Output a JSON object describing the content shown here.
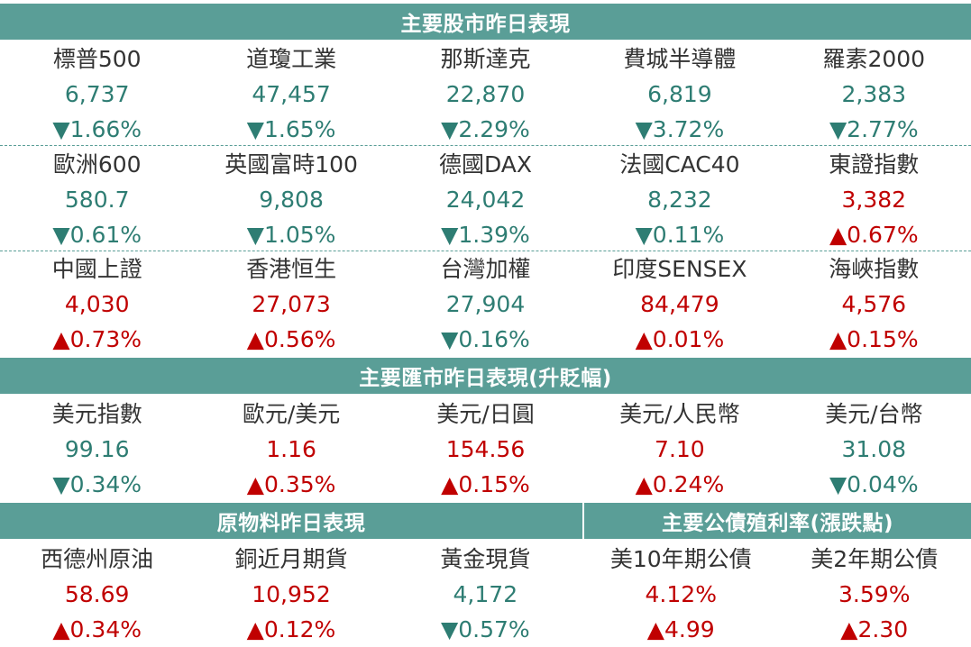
{
  "colors": {
    "banner": "#5a9e97",
    "up": "#c00000",
    "down": "#2e7d73",
    "name": "#333333"
  },
  "stocks": {
    "title": "主要股市昨日表現",
    "rows": [
      [
        {
          "name": "標普500",
          "value": "6,737",
          "change": "▼1.66%",
          "dir": "down"
        },
        {
          "name": "道瓊工業",
          "value": "47,457",
          "change": "▼1.65%",
          "dir": "down"
        },
        {
          "name": "那斯達克",
          "value": "22,870",
          "change": "▼2.29%",
          "dir": "down"
        },
        {
          "name": "費城半導體",
          "value": "6,819",
          "change": "▼3.72%",
          "dir": "down"
        },
        {
          "name": "羅素2000",
          "value": "2,383",
          "change": "▼2.77%",
          "dir": "down"
        }
      ],
      [
        {
          "name": "歐洲600",
          "value": "580.7",
          "change": "▼0.61%",
          "dir": "down"
        },
        {
          "name": "英國富時100",
          "value": "9,808",
          "change": "▼1.05%",
          "dir": "down"
        },
        {
          "name": "德國DAX",
          "value": "24,042",
          "change": "▼1.39%",
          "dir": "down"
        },
        {
          "name": "法國CAC40",
          "value": "8,232",
          "change": "▼0.11%",
          "dir": "down"
        },
        {
          "name": "東證指數",
          "value": "3,382",
          "change": "▲0.67%",
          "dir": "up"
        }
      ],
      [
        {
          "name": "中國上證",
          "value": "4,030",
          "change": "▲0.73%",
          "dir": "up"
        },
        {
          "name": "香港恒生",
          "value": "27,073",
          "change": "▲0.56%",
          "dir": "up"
        },
        {
          "name": "台灣加權",
          "value": "27,904",
          "change": "▼0.16%",
          "dir": "down"
        },
        {
          "name": "印度SENSEX",
          "value": "84,479",
          "change": "▲0.01%",
          "dir": "up"
        },
        {
          "name": "海峽指數",
          "value": "4,576",
          "change": "▲0.15%",
          "dir": "up"
        }
      ]
    ]
  },
  "fx": {
    "title": "主要匯市昨日表現(升貶幅)",
    "items": [
      {
        "name": "美元指數",
        "value": "99.16",
        "change": "▼0.34%",
        "dir": "down"
      },
      {
        "name": "歐元/美元",
        "value": "1.16",
        "change": "▲0.35%",
        "dir": "up"
      },
      {
        "name": "美元/日圓",
        "value": "154.56",
        "change": "▲0.15%",
        "dir": "up"
      },
      {
        "name": "美元/人民幣",
        "value": "7.10",
        "change": "▲0.24%",
        "dir": "up"
      },
      {
        "name": "美元/台幣",
        "value": "31.08",
        "change": "▼0.04%",
        "dir": "down"
      }
    ]
  },
  "commodities": {
    "title": "原物料昨日表現",
    "items": [
      {
        "name": "西德州原油",
        "value": "58.69",
        "change": "▲0.34%",
        "dir": "up"
      },
      {
        "name": "銅近月期貨",
        "value": "10,952",
        "change": "▲0.12%",
        "dir": "up"
      },
      {
        "name": "黃金現貨",
        "value": "4,172",
        "change": "▼0.57%",
        "dir": "down"
      }
    ]
  },
  "bonds": {
    "title": "主要公債殖利率(漲跌點)",
    "items": [
      {
        "name": "美10年期公債",
        "value": "4.12%",
        "change": "▲4.99",
        "dir": "up"
      },
      {
        "name": "美2年期公債",
        "value": "3.59%",
        "change": "▲2.30",
        "dir": "up"
      }
    ]
  }
}
